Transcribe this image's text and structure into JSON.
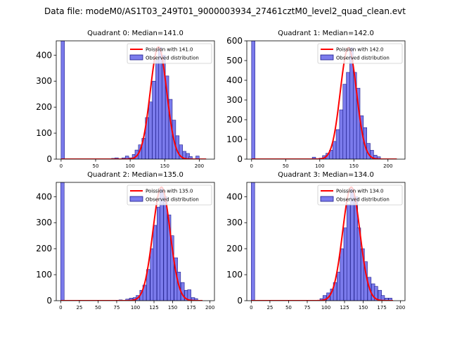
{
  "suptitle": "Data file: modeM0/AS1T03_249T01_9000003934_27461cztM0_level2_quad_clean.evt",
  "colors": {
    "bar_fill": "#7b7bec",
    "bar_edge": "#1c1c8a",
    "poisson_line": "#ff0000",
    "axis": "#000000"
  },
  "chart_data": [
    {
      "type": "bar",
      "title": "Quadrant 0: Median=141.0",
      "xlabel": "",
      "ylabel": "",
      "xlim": [
        -7,
        222
      ],
      "ylim": [
        0,
        455
      ],
      "xticks": [
        0,
        50,
        100,
        150,
        200
      ],
      "xtick_labels": [
        "0",
        "50",
        "100",
        "150",
        "200"
      ],
      "yticks": [
        0,
        100,
        200,
        300,
        400
      ],
      "ytick_labels": [
        "0",
        "100",
        "200",
        "300",
        "400"
      ],
      "bin_width": 4.9,
      "legend": {
        "position": "top-right",
        "entries": [
          "Poission with 141.0",
          "Observed distribution"
        ]
      },
      "poisson_mean": 141.0,
      "poisson_peak": 432,
      "line_range": [
        0,
        210
      ],
      "bins": [
        [
          0,
          455
        ],
        [
          73,
          3
        ],
        [
          78,
          5
        ],
        [
          88,
          5
        ],
        [
          93,
          12
        ],
        [
          98,
          5
        ],
        [
          103,
          18
        ],
        [
          107,
          35
        ],
        [
          112,
          55
        ],
        [
          117,
          80
        ],
        [
          122,
          160
        ],
        [
          127,
          220
        ],
        [
          132,
          300
        ],
        [
          137,
          380
        ],
        [
          141,
          430
        ],
        [
          146,
          400
        ],
        [
          151,
          320
        ],
        [
          156,
          230
        ],
        [
          161,
          150
        ],
        [
          166,
          90
        ],
        [
          171,
          55
        ],
        [
          176,
          30
        ],
        [
          181,
          22
        ],
        [
          185,
          10
        ],
        [
          195,
          12
        ]
      ]
    },
    {
      "type": "bar",
      "title": "Quadrant 1: Median=142.0",
      "xlabel": "",
      "ylabel": "",
      "xlim": [
        -7,
        225
      ],
      "ylim": [
        0,
        600
      ],
      "xticks": [
        0,
        50,
        100,
        150,
        200
      ],
      "xtick_labels": [
        "0",
        "50",
        "100",
        "150",
        "200"
      ],
      "yticks": [
        0,
        100,
        200,
        300,
        400,
        500,
        600
      ],
      "ytick_labels": [
        "0",
        "100",
        "200",
        "300",
        "400",
        "500",
        "600"
      ],
      "bin_width": 5.0,
      "legend": {
        "position": "top-right",
        "entries": [
          "Poission with 142.0",
          "Observed distribution"
        ]
      },
      "poisson_mean": 142.0,
      "poisson_peak": 565,
      "line_range": [
        0,
        213
      ],
      "bins": [
        [
          0,
          600
        ],
        [
          89,
          10
        ],
        [
          99,
          5
        ],
        [
          104,
          18
        ],
        [
          109,
          30
        ],
        [
          114,
          45
        ],
        [
          119,
          90
        ],
        [
          124,
          150
        ],
        [
          129,
          250
        ],
        [
          134,
          380
        ],
        [
          139,
          440
        ],
        [
          144,
          565
        ],
        [
          149,
          440
        ],
        [
          154,
          360
        ],
        [
          159,
          220
        ],
        [
          164,
          160
        ],
        [
          169,
          80
        ],
        [
          174,
          45
        ],
        [
          179,
          20
        ],
        [
          184,
          12
        ]
      ]
    },
    {
      "type": "bar",
      "title": "Quadrant 2: Median=135.0",
      "xlabel": "",
      "ylabel": "",
      "xlim": [
        -6,
        206
      ],
      "ylim": [
        0,
        455
      ],
      "xticks": [
        0,
        25,
        50,
        75,
        100,
        125,
        150,
        175,
        200
      ],
      "xtick_labels": [
        "0",
        "25",
        "50",
        "75",
        "100",
        "125",
        "150",
        "175",
        "200"
      ],
      "yticks": [
        0,
        100,
        200,
        300,
        400
      ],
      "ytick_labels": [
        "0",
        "100",
        "200",
        "300",
        "400"
      ],
      "bin_width": 4.6,
      "legend": {
        "position": "top-right",
        "entries": [
          "Poission with 135.0",
          "Observed distribution"
        ]
      },
      "poisson_mean": 135.0,
      "poisson_peak": 437,
      "line_range": [
        0,
        190
      ],
      "bins": [
        [
          0,
          455
        ],
        [
          78,
          3
        ],
        [
          87,
          6
        ],
        [
          92,
          10
        ],
        [
          97,
          12
        ],
        [
          101,
          20
        ],
        [
          106,
          40
        ],
        [
          110,
          60
        ],
        [
          115,
          120
        ],
        [
          120,
          200
        ],
        [
          124,
          290
        ],
        [
          129,
          360
        ],
        [
          133,
          430
        ],
        [
          138,
          400
        ],
        [
          143,
          330
        ],
        [
          147,
          250
        ],
        [
          152,
          165
        ],
        [
          156,
          110
        ],
        [
          161,
          70
        ],
        [
          166,
          40
        ],
        [
          170,
          42
        ],
        [
          175,
          12
        ],
        [
          179,
          8
        ]
      ]
    },
    {
      "type": "bar",
      "title": "Quadrant 3: Median=134.0",
      "xlabel": "",
      "ylabel": "",
      "xlim": [
        -6,
        206
      ],
      "ylim": [
        0,
        455
      ],
      "xticks": [
        0,
        25,
        50,
        75,
        100,
        125,
        150,
        175,
        200
      ],
      "xtick_labels": [
        "0",
        "25",
        "50",
        "75",
        "100",
        "125",
        "150",
        "175",
        "200"
      ],
      "yticks": [
        0,
        100,
        200,
        300,
        400
      ],
      "ytick_labels": [
        "0",
        "100",
        "200",
        "300",
        "400"
      ],
      "bin_width": 4.6,
      "legend": {
        "position": "top-right",
        "entries": [
          "Poission with 134.0",
          "Observed distribution"
        ]
      },
      "poisson_mean": 134.0,
      "poisson_peak": 437,
      "line_range": [
        0,
        190
      ],
      "bins": [
        [
          0,
          455
        ],
        [
          92,
          8
        ],
        [
          96,
          20
        ],
        [
          101,
          30
        ],
        [
          106,
          45
        ],
        [
          110,
          70
        ],
        [
          115,
          110
        ],
        [
          119,
          200
        ],
        [
          124,
          280
        ],
        [
          128,
          370
        ],
        [
          133,
          430
        ],
        [
          138,
          400
        ],
        [
          142,
          280
        ],
        [
          147,
          200
        ],
        [
          151,
          150
        ],
        [
          156,
          90
        ],
        [
          161,
          65
        ],
        [
          165,
          55
        ],
        [
          170,
          40
        ],
        [
          174,
          20
        ],
        [
          179,
          10
        ],
        [
          184,
          10
        ]
      ]
    }
  ]
}
